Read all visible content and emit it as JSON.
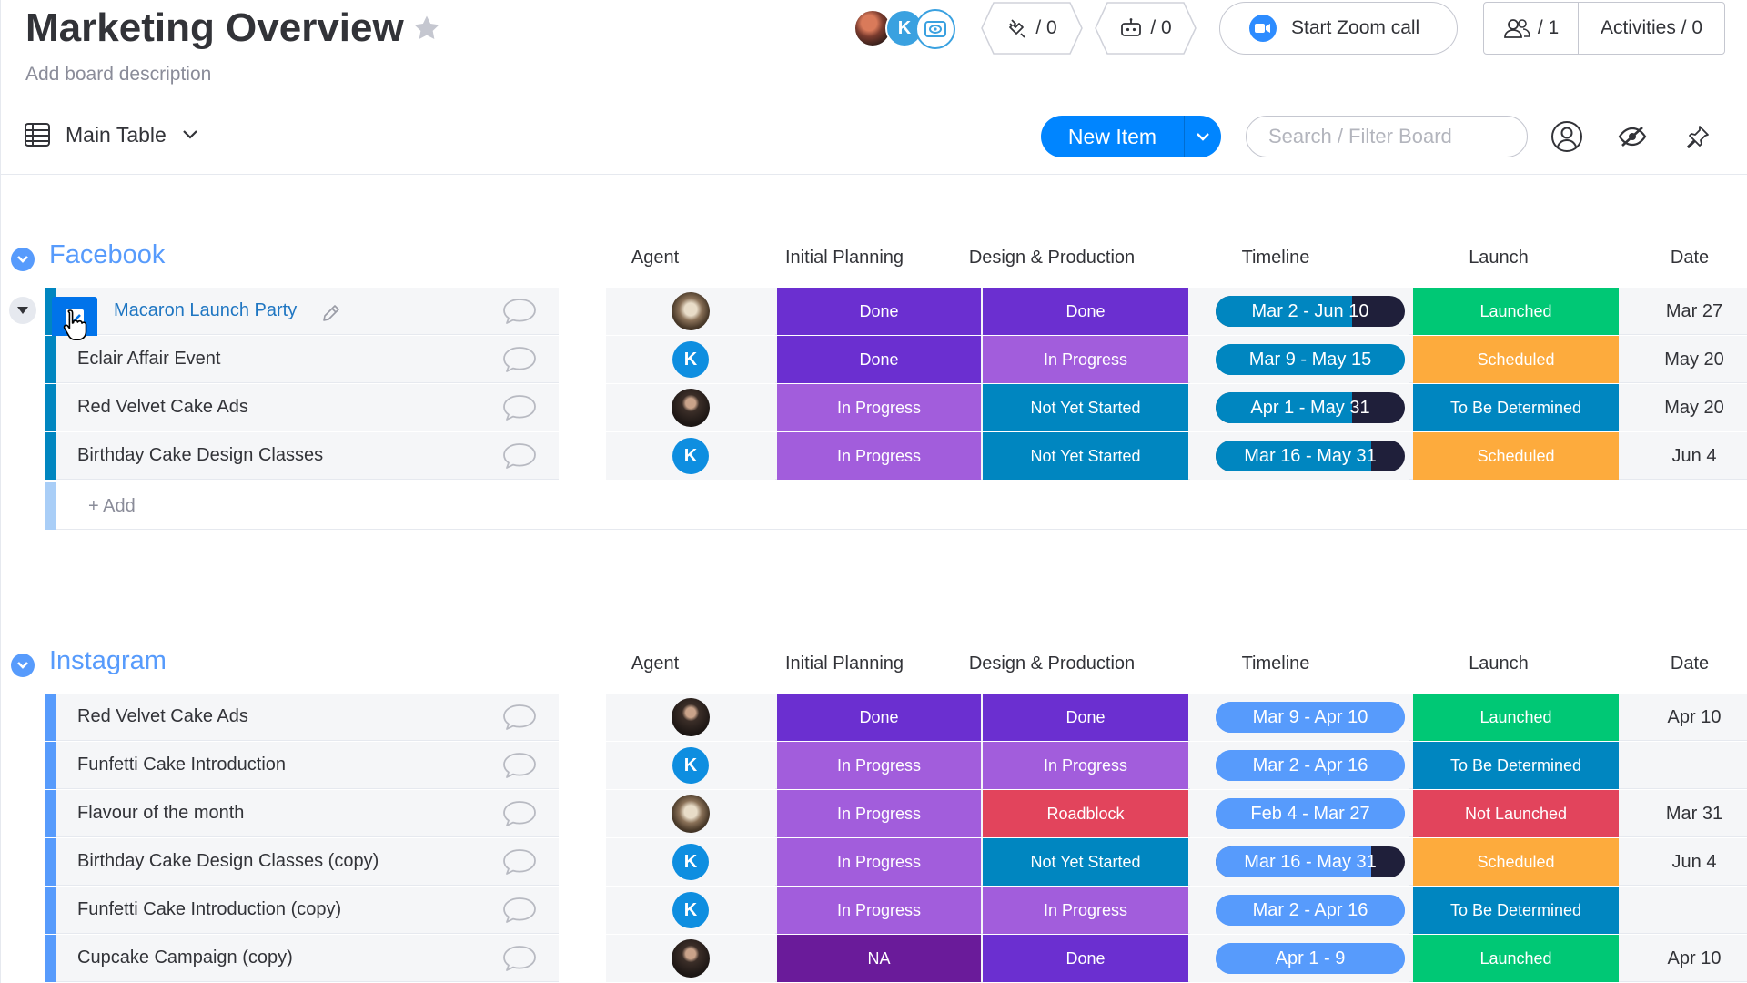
{
  "header": {
    "title": "Marketing Overview",
    "description": "Add board description",
    "integrations_count": "/ 0",
    "automations_count": "/ 0",
    "zoom_label": "Start Zoom call",
    "members_count": "/ 1",
    "activities_label": "Activities / 0"
  },
  "toolbar": {
    "view_label": "Main Table",
    "new_item_label": "New Item",
    "search_placeholder": "Search / Filter Board"
  },
  "columns": [
    "Agent",
    "Initial Planning",
    "Design & Production",
    "Timeline",
    "Launch",
    "Date"
  ],
  "colors": {
    "Done": "#6b2fd0",
    "In Progress": "#a25ddc",
    "Not Yet Started": "#0086c0",
    "Roadblock": "#e2445c",
    "NA": "#6a1b9a",
    "Launched": "#00c875",
    "Scheduled": "#fdab3d",
    "To Be Determined": "#0086c0",
    "Not Launched": "#e2445c",
    "facebook_bar": "#0086c0",
    "instagram_bar": "#579bfc",
    "timeline_dark": "#1f1f3a",
    "timeline_blue": "#0086c0",
    "timeline_light": "#579bfc"
  },
  "groups": [
    {
      "title": "Facebook",
      "add_label": "+ Add",
      "rows": [
        {
          "name": "Macaron Launch Party",
          "agent": "dog-avatar",
          "planning": "Done",
          "design": "Done",
          "timeline": "Mar 2 - Jun 10",
          "timeline_progress": 0.72,
          "launch": "Launched",
          "date": "Mar 27"
        },
        {
          "name": "Eclair Affair Event",
          "agent": "K",
          "planning": "Done",
          "design": "In Progress",
          "timeline": "Mar 9 - May 15",
          "timeline_progress": 1.0,
          "launch": "Scheduled",
          "date": "May 20"
        },
        {
          "name": "Red Velvet Cake Ads",
          "agent": "woman-avatar",
          "planning": "In Progress",
          "design": "Not Yet Started",
          "timeline": "Apr 1 - May 31",
          "timeline_progress": 0.72,
          "launch": "To Be Determined",
          "date": "May 20"
        },
        {
          "name": "Birthday Cake Design Classes",
          "agent": "K",
          "planning": "In Progress",
          "design": "Not Yet Started",
          "timeline": "Mar 16 - May 31",
          "timeline_progress": 0.82,
          "launch": "Scheduled",
          "date": "Jun 4"
        }
      ]
    },
    {
      "title": "Instagram",
      "rows": [
        {
          "name": "Red Velvet Cake Ads",
          "agent": "woman-avatar",
          "planning": "Done",
          "design": "Done",
          "timeline": "Mar 9 - Apr 10",
          "timeline_progress": 1.0,
          "launch": "Launched",
          "date": "Apr 10"
        },
        {
          "name": "Funfetti Cake Introduction",
          "agent": "K",
          "planning": "In Progress",
          "design": "In Progress",
          "timeline": "Mar 2 - Apr 16",
          "timeline_progress": 1.0,
          "launch": "To Be Determined",
          "date": ""
        },
        {
          "name": "Flavour of the month",
          "agent": "dog-avatar",
          "planning": "In Progress",
          "design": "Roadblock",
          "timeline": "Feb 4 - Mar 27",
          "timeline_progress": 1.0,
          "launch": "Not Launched",
          "date": "Mar 31"
        },
        {
          "name": "Birthday Cake Design Classes (copy)",
          "agent": "K",
          "planning": "In Progress",
          "design": "Not Yet Started",
          "timeline": "Mar 16 - May 31",
          "timeline_progress": 0.82,
          "launch": "Scheduled",
          "date": "Jun 4"
        },
        {
          "name": "Funfetti Cake Introduction (copy)",
          "agent": "K",
          "planning": "In Progress",
          "design": "In Progress",
          "timeline": "Mar 2 - Apr 16",
          "timeline_progress": 1.0,
          "launch": "To Be Determined",
          "date": ""
        },
        {
          "name": "Cupcake Campaign (copy)",
          "agent": "woman-avatar",
          "planning": "NA",
          "design": "Done",
          "timeline": "Apr 1 - 9",
          "timeline_progress": 1.0,
          "launch": "Launched",
          "date": "Apr 10"
        }
      ]
    }
  ]
}
